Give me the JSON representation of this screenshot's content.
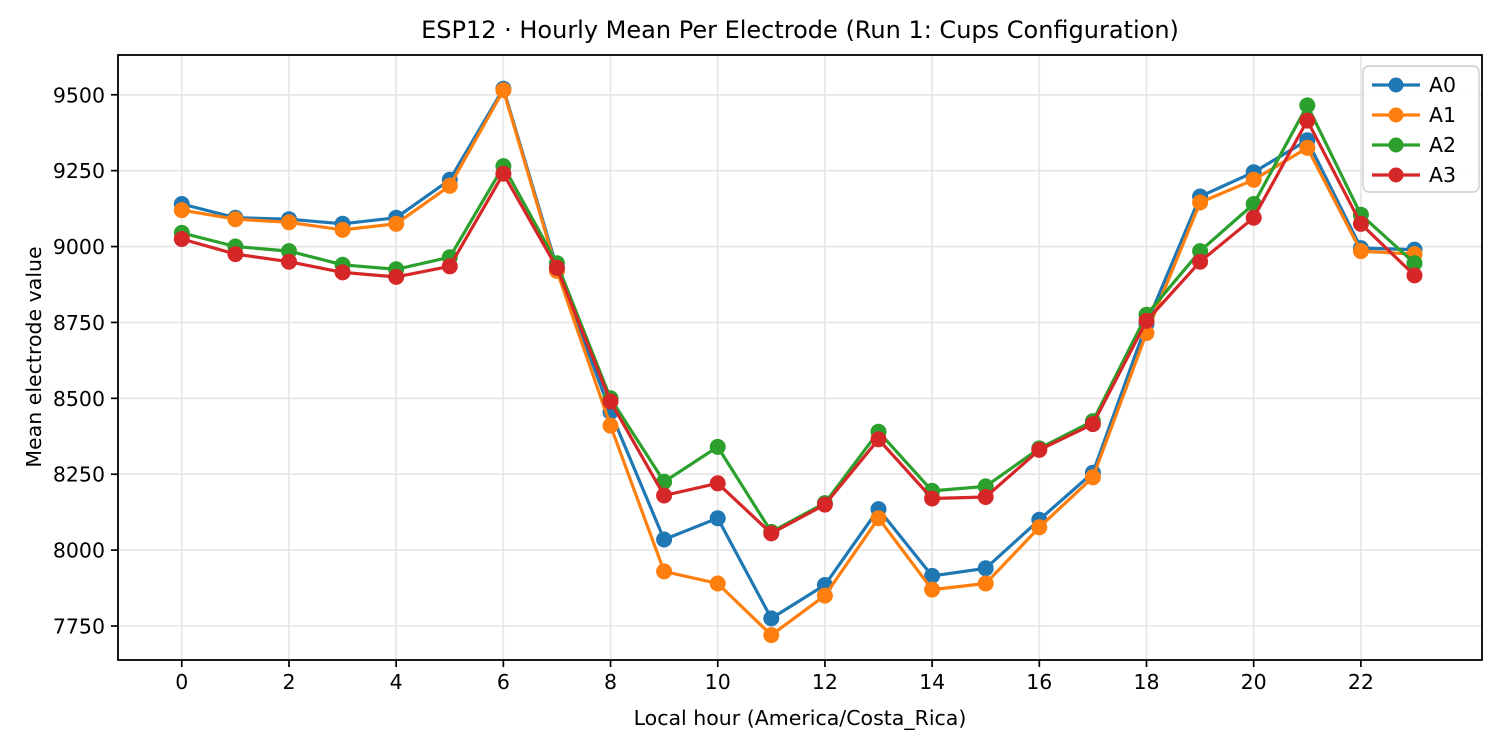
{
  "figure": {
    "background": "#ffffff",
    "accent_colors": [
      "#1f77b4",
      "#ff7f0e",
      "#2ca02c",
      "#d62728"
    ]
  },
  "chart_data": {
    "type": "line",
    "title": "ESP12 · Hourly Mean Per Electrode (Run 1: Cups Configuration)",
    "xlabel": "Local hour (America/Costa_Rica)",
    "ylabel": "Mean electrode value",
    "x": [
      0,
      1,
      2,
      3,
      4,
      5,
      6,
      7,
      8,
      9,
      10,
      11,
      12,
      13,
      14,
      15,
      16,
      17,
      18,
      19,
      20,
      21,
      22,
      23
    ],
    "series": [
      {
        "name": "A0",
        "color": "#1f77b4",
        "values": [
          9140,
          9095,
          9090,
          9075,
          9095,
          9220,
          9520,
          8930,
          8455,
          8035,
          8105,
          7775,
          7885,
          8135,
          7915,
          7940,
          8100,
          8255,
          8745,
          9165,
          9245,
          9350,
          8995,
          8990
        ]
      },
      {
        "name": "A1",
        "color": "#ff7f0e",
        "values": [
          9120,
          9090,
          9080,
          9055,
          9075,
          9200,
          9515,
          8920,
          8410,
          7930,
          7890,
          7720,
          7850,
          8105,
          7870,
          7890,
          8075,
          8240,
          8715,
          9145,
          9220,
          9325,
          8985,
          8975
        ]
      },
      {
        "name": "A2",
        "color": "#2ca02c",
        "values": [
          9045,
          9000,
          8985,
          8940,
          8925,
          8965,
          9265,
          8945,
          8500,
          8225,
          8340,
          8060,
          8155,
          8390,
          8195,
          8210,
          8335,
          8425,
          8775,
          8985,
          9140,
          9465,
          9105,
          8945
        ]
      },
      {
        "name": "A3",
        "color": "#d62728",
        "values": [
          9025,
          8975,
          8950,
          8915,
          8900,
          8935,
          9240,
          8930,
          8490,
          8180,
          8220,
          8055,
          8150,
          8365,
          8170,
          8175,
          8330,
          8415,
          8755,
          8950,
          9095,
          9415,
          9075,
          8905
        ]
      }
    ],
    "xticks": [
      0,
      2,
      4,
      6,
      8,
      10,
      12,
      14,
      16,
      18,
      20,
      22
    ],
    "yticks": [
      7750,
      8000,
      8250,
      8500,
      8750,
      9000,
      9250,
      9500
    ],
    "xlim": [
      -1.19,
      24.26
    ],
    "ylim": [
      7638,
      9631
    ],
    "grid": true,
    "grid_color": "#e5e5e5",
    "legend_position": "upper right",
    "marker": "circle"
  }
}
